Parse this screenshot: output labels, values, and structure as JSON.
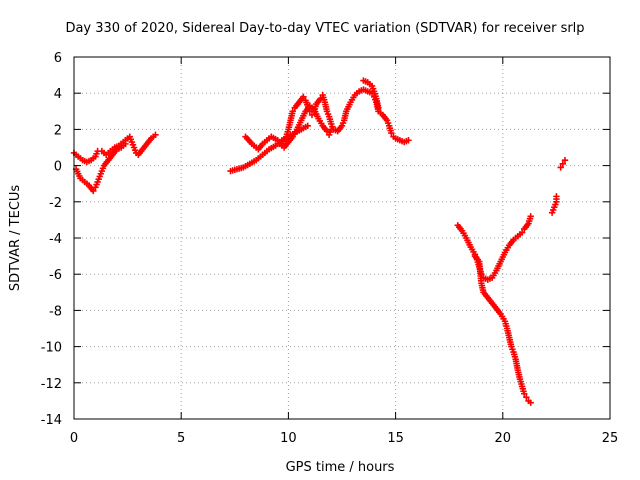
{
  "chart_data": {
    "type": "scatter",
    "title": "Day 330 of 2020, Sidereal Day-to-day VTEC variation (SDTVAR) for receiver srlp",
    "xlabel": "GPS time / hours",
    "ylabel": "SDTVAR / TECUs",
    "xlim": [
      0,
      25
    ],
    "ylim": [
      -14,
      6
    ],
    "xticks": [
      "0",
      "5",
      "10",
      "15",
      "20",
      "25"
    ],
    "yticks": [
      "6",
      "4",
      "2",
      "0",
      "-2",
      "-4",
      "-6",
      "-8",
      "-10",
      "-12",
      "-14"
    ],
    "grid": true,
    "marker": "plus",
    "color": "#ff0000",
    "series": [
      {
        "points": [
          [
            0.0,
            0.7
          ],
          [
            0.2,
            0.5
          ],
          [
            0.4,
            0.3
          ],
          [
            0.6,
            0.2
          ],
          [
            0.8,
            0.3
          ],
          [
            1.0,
            0.5
          ],
          [
            1.1,
            0.8
          ],
          [
            1.3,
            0.8
          ],
          [
            1.5,
            0.6
          ],
          [
            1.7,
            0.8
          ],
          [
            1.9,
            1.0
          ],
          [
            2.1,
            1.1
          ],
          [
            2.3,
            1.3
          ],
          [
            2.5,
            1.5
          ],
          [
            2.6,
            1.6
          ],
          [
            2.7,
            1.3
          ],
          [
            2.8,
            1.0
          ],
          [
            2.9,
            0.7
          ],
          [
            3.0,
            0.6
          ],
          [
            3.2,
            0.9
          ],
          [
            3.4,
            1.2
          ],
          [
            3.6,
            1.5
          ],
          [
            3.8,
            1.7
          ]
        ]
      },
      {
        "points": [
          [
            0.1,
            -0.2
          ],
          [
            0.3,
            -0.7
          ],
          [
            0.5,
            -0.9
          ],
          [
            0.7,
            -1.1
          ],
          [
            0.9,
            -1.4
          ],
          [
            1.0,
            -1.2
          ],
          [
            1.1,
            -0.9
          ],
          [
            1.2,
            -0.6
          ],
          [
            1.3,
            -0.3
          ],
          [
            1.4,
            0.0
          ],
          [
            1.6,
            0.3
          ],
          [
            1.8,
            0.6
          ],
          [
            2.0,
            0.9
          ],
          [
            2.2,
            1.0
          ],
          [
            2.4,
            1.2
          ]
        ]
      },
      {
        "points": [
          [
            7.3,
            -0.3
          ],
          [
            7.6,
            -0.2
          ],
          [
            7.9,
            -0.1
          ],
          [
            8.2,
            0.1
          ],
          [
            8.5,
            0.3
          ],
          [
            8.8,
            0.6
          ],
          [
            9.1,
            0.9
          ],
          [
            9.4,
            1.1
          ],
          [
            9.7,
            1.4
          ],
          [
            10.0,
            1.6
          ],
          [
            10.3,
            1.8
          ],
          [
            10.6,
            2.0
          ],
          [
            10.9,
            2.2
          ]
        ]
      },
      {
        "points": [
          [
            8.0,
            1.6
          ],
          [
            8.3,
            1.2
          ],
          [
            8.6,
            0.9
          ],
          [
            8.8,
            1.2
          ],
          [
            9.0,
            1.4
          ],
          [
            9.2,
            1.6
          ],
          [
            9.5,
            1.4
          ],
          [
            9.7,
            1.2
          ],
          [
            9.9,
            1.6
          ],
          [
            10.0,
            2.0
          ],
          [
            10.1,
            2.5
          ],
          [
            10.2,
            3.0
          ],
          [
            10.3,
            3.2
          ],
          [
            10.5,
            3.5
          ],
          [
            10.7,
            3.8
          ],
          [
            10.8,
            3.6
          ],
          [
            11.0,
            3.0
          ],
          [
            11.1,
            2.8
          ],
          [
            11.2,
            3.0
          ],
          [
            11.3,
            3.4
          ],
          [
            11.5,
            3.7
          ],
          [
            11.6,
            3.9
          ],
          [
            11.7,
            3.5
          ],
          [
            11.8,
            3.0
          ],
          [
            11.9,
            2.7
          ],
          [
            12.0,
            2.3
          ],
          [
            12.1,
            2.0
          ],
          [
            12.3,
            1.9
          ],
          [
            12.5,
            2.2
          ],
          [
            12.6,
            2.5
          ],
          [
            12.7,
            3.0
          ],
          [
            12.9,
            3.5
          ],
          [
            13.1,
            3.9
          ],
          [
            13.3,
            4.1
          ],
          [
            13.5,
            4.2
          ],
          [
            13.7,
            4.1
          ],
          [
            13.9,
            4.0
          ],
          [
            14.0,
            3.8
          ],
          [
            14.1,
            3.5
          ],
          [
            14.2,
            3.0
          ],
          [
            14.4,
            2.8
          ],
          [
            14.6,
            2.5
          ],
          [
            14.7,
            2.2
          ],
          [
            14.8,
            1.8
          ],
          [
            14.9,
            1.6
          ],
          [
            15.0,
            1.5
          ],
          [
            15.2,
            1.4
          ],
          [
            15.4,
            1.3
          ],
          [
            15.6,
            1.4
          ]
        ]
      },
      {
        "points": [
          [
            9.6,
            1.2
          ],
          [
            9.8,
            1.0
          ],
          [
            10.0,
            1.3
          ],
          [
            10.2,
            1.6
          ],
          [
            10.4,
            2.0
          ],
          [
            10.6,
            2.5
          ],
          [
            10.8,
            3.0
          ],
          [
            11.0,
            3.3
          ],
          [
            11.2,
            3.1
          ],
          [
            11.4,
            2.6
          ],
          [
            11.6,
            2.2
          ],
          [
            11.8,
            1.9
          ],
          [
            11.9,
            1.7
          ],
          [
            12.0,
            2.0
          ]
        ]
      },
      {
        "points": [
          [
            13.5,
            4.7
          ],
          [
            13.7,
            4.6
          ],
          [
            13.9,
            4.4
          ],
          [
            14.0,
            4.1
          ],
          [
            14.1,
            3.7
          ],
          [
            14.2,
            3.2
          ]
        ]
      },
      {
        "points": [
          [
            17.9,
            -3.3
          ],
          [
            18.1,
            -3.6
          ],
          [
            18.3,
            -4.0
          ],
          [
            18.5,
            -4.5
          ],
          [
            18.7,
            -4.9
          ],
          [
            18.8,
            -5.2
          ],
          [
            18.9,
            -5.6
          ],
          [
            19.0,
            -6.0
          ],
          [
            19.1,
            -6.2
          ],
          [
            19.3,
            -6.3
          ],
          [
            19.5,
            -6.2
          ],
          [
            19.7,
            -5.8
          ],
          [
            19.9,
            -5.3
          ],
          [
            20.1,
            -4.8
          ],
          [
            20.3,
            -4.4
          ],
          [
            20.5,
            -4.1
          ],
          [
            20.7,
            -3.9
          ],
          [
            20.9,
            -3.7
          ],
          [
            21.0,
            -3.5
          ],
          [
            21.2,
            -3.2
          ],
          [
            21.3,
            -2.8
          ]
        ]
      },
      {
        "points": [
          [
            18.7,
            -5.0
          ],
          [
            18.9,
            -5.3
          ],
          [
            19.0,
            -6.5
          ],
          [
            19.1,
            -7.0
          ],
          [
            19.3,
            -7.3
          ],
          [
            19.5,
            -7.6
          ],
          [
            19.7,
            -7.9
          ],
          [
            19.9,
            -8.2
          ],
          [
            20.1,
            -8.6
          ],
          [
            20.2,
            -9.0
          ],
          [
            20.3,
            -9.5
          ],
          [
            20.4,
            -10.0
          ],
          [
            20.5,
            -10.3
          ],
          [
            20.6,
            -10.7
          ],
          [
            20.7,
            -11.3
          ],
          [
            20.8,
            -11.8
          ],
          [
            20.9,
            -12.2
          ],
          [
            21.0,
            -12.6
          ],
          [
            21.1,
            -12.8
          ],
          [
            21.2,
            -13.0
          ],
          [
            21.3,
            -13.1
          ]
        ]
      },
      {
        "points": [
          [
            22.3,
            -2.6
          ],
          [
            22.4,
            -2.3
          ],
          [
            22.5,
            -2.0
          ],
          [
            22.5,
            -1.7
          ]
        ]
      },
      {
        "points": [
          [
            22.7,
            -0.1
          ],
          [
            22.8,
            0.1
          ],
          [
            22.9,
            0.3
          ]
        ]
      }
    ]
  }
}
